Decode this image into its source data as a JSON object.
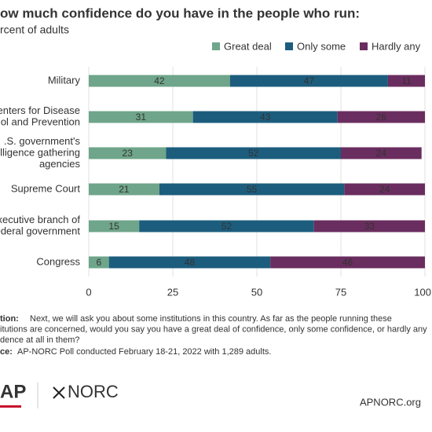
{
  "chart_data": {
    "type": "stacked-bar-horizontal",
    "title": "ow much confidence do you have in the people who run:",
    "subtitle": "rcent of adults",
    "categories": [
      [
        "Military"
      ],
      [
        "enters for Disease",
        "ol and Prevention"
      ],
      [
        ".S. government's",
        "elligence gathering",
        "agencies"
      ],
      [
        "Supreme Court"
      ],
      [
        "xecutive branch of",
        "ederal government"
      ],
      [
        "Congress"
      ]
    ],
    "series": [
      {
        "name": "Great deal",
        "color": "#6fa58a",
        "values": [
          42,
          31,
          23,
          21,
          15,
          6
        ]
      },
      {
        "name": "Only some",
        "color": "#1c5d7d",
        "values": [
          47,
          43,
          52,
          55,
          52,
          48
        ]
      },
      {
        "name": "Hardly any",
        "color": "#6a2d5f",
        "values": [
          11,
          26,
          24,
          24,
          33,
          46
        ]
      }
    ],
    "xlim": [
      0,
      100
    ],
    "xticks": [
      0,
      25,
      50,
      75,
      100
    ],
    "grid": true,
    "note_label": "tion:",
    "note_lines": [
      "Next, we will ask you about some institutions in this country. As far as the people running these",
      "itutions are concerned, would you say you have a great deal of confidence, only some confidence, or hardly any",
      "dence at all in them?"
    ],
    "source_label": "ce:",
    "source": "AP-NORC Poll conducted February 18-21, 2022 with 1,289 adults.",
    "logo_ap": "AP",
    "logo_norc": "NORC",
    "url": "APNORC.org"
  }
}
